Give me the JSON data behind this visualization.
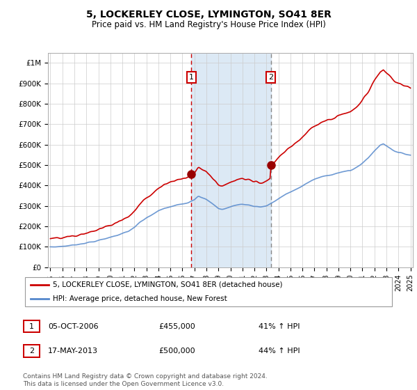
{
  "title": "5, LOCKERLEY CLOSE, LYMINGTON, SO41 8ER",
  "subtitle": "Price paid vs. HM Land Registry's House Price Index (HPI)",
  "legend_line1": "5, LOCKERLEY CLOSE, LYMINGTON, SO41 8ER (detached house)",
  "legend_line2": "HPI: Average price, detached house, New Forest",
  "annotation1_date": "05-OCT-2006",
  "annotation1_price": "£455,000",
  "annotation1_hpi": "41% ↑ HPI",
  "annotation2_date": "17-MAY-2013",
  "annotation2_price": "£500,000",
  "annotation2_hpi": "44% ↑ HPI",
  "footer": "Contains HM Land Registry data © Crown copyright and database right 2024.\nThis data is licensed under the Open Government Licence v3.0.",
  "hpi_color": "#5588cc",
  "sale_color": "#cc0000",
  "vline1_color": "#cc0000",
  "vline2_color": "#888888",
  "span_color": "#dce9f5",
  "plot_bg": "#ffffff",
  "fig_bg": "#ffffff",
  "grid_color": "#cccccc",
  "sale1_x": 2006.75,
  "sale1_y": 455000,
  "sale2_x": 2013.37,
  "sale2_y": 500000,
  "vline1_x": 2006.75,
  "vline2_x": 2013.37,
  "xmin": 1995,
  "xmax": 2025,
  "ylim": [
    0,
    1000000
  ],
  "yticks": [
    0,
    100000,
    200000,
    300000,
    400000,
    500000,
    600000,
    700000,
    800000,
    900000
  ],
  "ytick_labels": [
    "£0",
    "£100K",
    "£200K",
    "£300K",
    "£400K",
    "£500K",
    "£600K",
    "£700K",
    "£800K",
    "£900K"
  ],
  "extra_ytick": 1000000,
  "extra_ytick_label": "£1M"
}
